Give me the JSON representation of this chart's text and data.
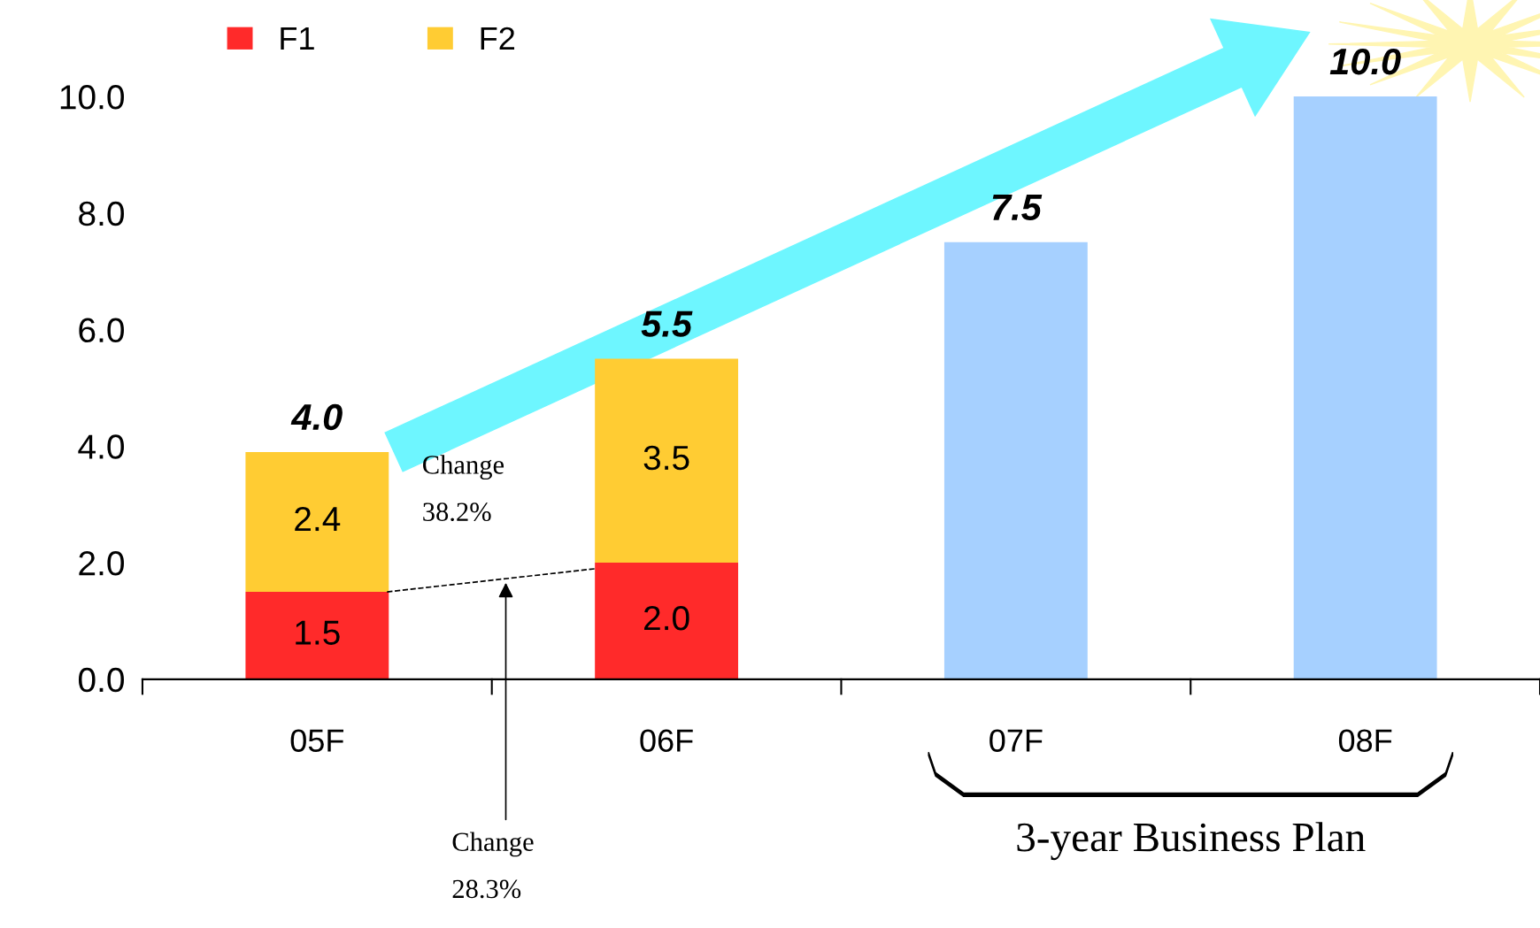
{
  "chart_data": {
    "type": "bar",
    "stacked": true,
    "categories": [
      "05F",
      "06F",
      "07F",
      "08F"
    ],
    "series": [
      {
        "name": "F1",
        "color": "#ff2a2a",
        "values": [
          1.5,
          2.0,
          null,
          null
        ],
        "value_labels": [
          "1.5",
          "2.0",
          null,
          null
        ]
      },
      {
        "name": "F2",
        "color": "#ffcc33",
        "values": [
          2.4,
          3.5,
          null,
          null
        ],
        "value_labels": [
          "2.4",
          "3.5",
          null,
          null
        ]
      },
      {
        "color": "#a6d0ff",
        "values": [
          null,
          null,
          7.5,
          10.0
        ]
      }
    ],
    "totals": [
      "4.0",
      "5.5",
      "7.5",
      "10.0"
    ],
    "ylim": [
      0,
      10
    ],
    "yticks": [
      {
        "value": 0,
        "label": "0.0"
      },
      {
        "value": 2,
        "label": "2.0"
      },
      {
        "value": 4,
        "label": "4.0"
      },
      {
        "value": 6,
        "label": "6.0"
      },
      {
        "value": 8,
        "label": "8.0"
      },
      {
        "value": 10,
        "label": "10.0"
      }
    ],
    "grid": false,
    "legend": "top left",
    "annotations": [
      "Change\n38.2%",
      "Change\n28.3%",
      "3-year Business Plan"
    ]
  }
}
